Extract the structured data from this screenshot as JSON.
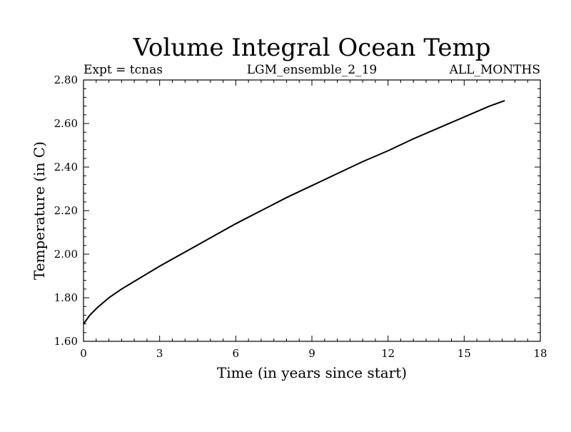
{
  "chart_data": {
    "type": "line",
    "title": "Volume Integral Ocean Temp",
    "subtitle_left": "Expt = tcnas",
    "subtitle_center": "LGM_ensemble_2_19",
    "subtitle_right": "ALL_MONTHS",
    "xlabel": "Time (in years since start)",
    "ylabel": "Temperature (in C)",
    "xlim": [
      0,
      18
    ],
    "ylim": [
      1.6,
      2.8
    ],
    "x_ticks": [
      0,
      3,
      6,
      9,
      12,
      15,
      18
    ],
    "x_tick_labels": [
      "0",
      "3",
      "6",
      "9",
      "12",
      "15",
      "18"
    ],
    "y_ticks": [
      1.6,
      1.8,
      2.0,
      2.2,
      2.4,
      2.6,
      2.8
    ],
    "y_tick_labels": [
      "1.60",
      "1.80",
      "2.00",
      "2.20",
      "2.40",
      "2.60",
      "2.80"
    ],
    "x_minor_step": 0.5,
    "y_minor_step": 0.04,
    "grid": false,
    "line_color": "#000000",
    "series": [
      {
        "name": "Volume integral ocean temperature",
        "x": [
          0,
          0.25,
          0.5,
          1,
          1.5,
          2,
          2.5,
          3,
          4,
          5,
          6,
          7,
          8,
          9,
          10,
          11,
          12,
          13,
          14,
          15,
          16,
          16.6
        ],
        "y": [
          1.68,
          1.72,
          1.75,
          1.8,
          1.84,
          1.875,
          1.91,
          1.945,
          2.01,
          2.075,
          2.14,
          2.2,
          2.26,
          2.315,
          2.37,
          2.425,
          2.475,
          2.53,
          2.58,
          2.63,
          2.68,
          2.705
        ]
      }
    ]
  }
}
